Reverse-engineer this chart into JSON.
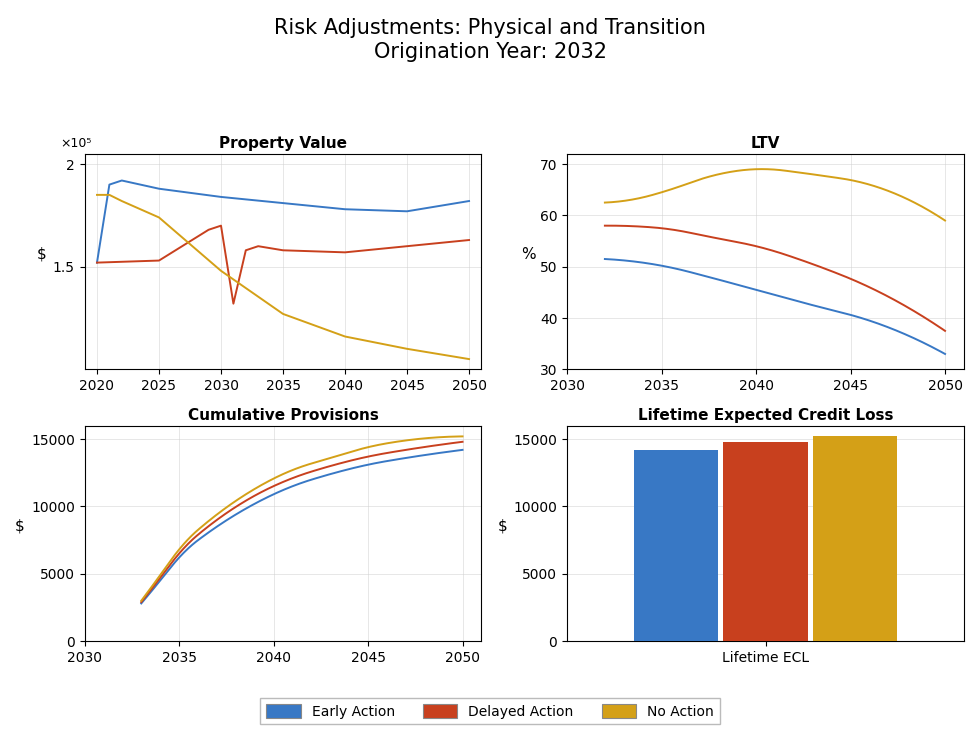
{
  "title": "Risk Adjustments: Physical and Transition\nOrigination Year: 2032",
  "title_fontsize": 15,
  "colors": {
    "early": "#3878c5",
    "delayed": "#c8401e",
    "no_action": "#d4a017"
  },
  "ax1": {
    "title": "Property Value",
    "ylabel": "$",
    "xlim": [
      2019,
      2051
    ],
    "ylim": [
      100000,
      205000
    ],
    "yticks": [
      150000,
      200000
    ],
    "yticklabels": [
      "1.5",
      "2"
    ],
    "xticks": [
      2020,
      2025,
      2030,
      2035,
      2040,
      2045,
      2050
    ],
    "scale_label": "×10⁵",
    "early_x": [
      2020,
      2021,
      2022,
      2025,
      2030,
      2035,
      2040,
      2045,
      2050
    ],
    "early_y": [
      152000,
      190000,
      192000,
      188000,
      184000,
      181000,
      178000,
      177000,
      182000
    ],
    "delayed_x": [
      2020,
      2025,
      2029,
      2030,
      2031,
      2032,
      2033,
      2035,
      2040,
      2045,
      2050
    ],
    "delayed_y": [
      152000,
      153000,
      168000,
      170000,
      132000,
      158000,
      160000,
      158000,
      157000,
      160000,
      163000
    ],
    "no_x": [
      2020,
      2021,
      2022,
      2025,
      2030,
      2035,
      2040,
      2045,
      2050
    ],
    "no_y": [
      185000,
      185000,
      182000,
      174000,
      148000,
      127000,
      116000,
      110000,
      105000
    ]
  },
  "ax2": {
    "title": "LTV",
    "ylabel": "%",
    "xlim": [
      2030,
      2051
    ],
    "ylim": [
      30,
      72
    ],
    "yticks": [
      30,
      40,
      50,
      60,
      70
    ],
    "xticks": [
      2030,
      2035,
      2040,
      2045,
      2050
    ],
    "early_x": [
      2032,
      2034,
      2035,
      2038,
      2040,
      2043,
      2046,
      2050
    ],
    "early_y": [
      51.5,
      50.8,
      50.2,
      47.5,
      45.5,
      42.5,
      39.5,
      33.0
    ],
    "delayed_x": [
      2032,
      2034,
      2035,
      2038,
      2040,
      2043,
      2046,
      2050
    ],
    "delayed_y": [
      58.0,
      57.8,
      57.5,
      55.5,
      54.0,
      50.5,
      46.0,
      37.5
    ],
    "no_x": [
      2032,
      2034,
      2035,
      2038,
      2040,
      2043,
      2046,
      2050
    ],
    "no_y": [
      62.5,
      63.5,
      64.5,
      68.0,
      69.0,
      68.0,
      66.0,
      59.0
    ]
  },
  "ax3": {
    "title": "Cumulative Provisions",
    "ylabel": "$",
    "xlim": [
      2030,
      2051
    ],
    "ylim": [
      0,
      16000
    ],
    "yticks": [
      0,
      5000,
      10000,
      15000
    ],
    "xticks": [
      2030,
      2035,
      2040,
      2045,
      2050
    ],
    "early_x": [
      2033,
      2034,
      2035,
      2037,
      2039,
      2041,
      2043,
      2045,
      2047,
      2050
    ],
    "early_y": [
      2800,
      4500,
      6200,
      8500,
      10200,
      11500,
      12400,
      13100,
      13600,
      14200
    ],
    "delayed_x": [
      2033,
      2034,
      2035,
      2037,
      2039,
      2041,
      2043,
      2045,
      2047,
      2050
    ],
    "delayed_y": [
      2900,
      4700,
      6500,
      9000,
      10800,
      12100,
      13000,
      13700,
      14200,
      14800
    ],
    "no_x": [
      2033,
      2034,
      2035,
      2037,
      2039,
      2041,
      2043,
      2045,
      2047,
      2050
    ],
    "no_y": [
      3000,
      4900,
      6800,
      9400,
      11300,
      12700,
      13600,
      14400,
      14900,
      15200
    ]
  },
  "ax4": {
    "title": "Lifetime Expected Credit Loss",
    "ylabel": "$",
    "ylim": [
      0,
      16000
    ],
    "yticks": [
      0,
      5000,
      10000,
      15000
    ],
    "xlabel": "Lifetime ECL",
    "bar_values": [
      14200,
      14800,
      15200
    ],
    "bar_colors": [
      "#3878c5",
      "#c8401e",
      "#d4a017"
    ],
    "bar_labels": [
      "Early Action",
      "Delayed Action",
      "No Action"
    ],
    "bar_positions": [
      0.82,
      1.0,
      1.18
    ],
    "bar_width": 0.17
  },
  "legend_labels": [
    "Early Action",
    "Delayed Action",
    "No Action"
  ]
}
